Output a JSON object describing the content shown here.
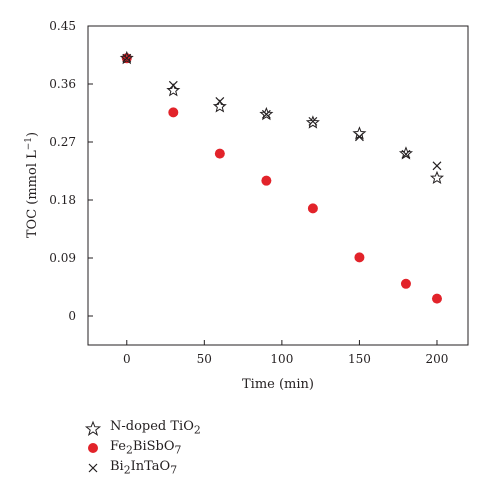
{
  "chart_data": {
    "type": "scatter",
    "title": "",
    "xlabel": "Time (min)",
    "ylabel_parts": [
      "TOC (mmol L",
      "−1",
      ")"
    ],
    "xlim": [
      -25,
      220
    ],
    "ylim": [
      -0.045,
      0.45
    ],
    "x_ticks": [
      0,
      50,
      100,
      150,
      200
    ],
    "y_ticks": [
      0,
      0.09,
      0.18,
      0.27,
      0.36,
      0.45
    ],
    "y_tick_labels": [
      "0",
      "0.09",
      "0.18",
      "0.27",
      "0.36",
      "0.45"
    ],
    "grid": false,
    "legend_placement": "bottom-left outside",
    "series": [
      {
        "name_parts": [
          "N-doped TiO",
          "2",
          ""
        ],
        "marker": "star-open",
        "color": "#231f20",
        "x": [
          0,
          30,
          60,
          90,
          120,
          150,
          180,
          200
        ],
        "y": [
          0.4,
          0.35,
          0.325,
          0.313,
          0.3,
          0.283,
          0.252,
          0.214
        ]
      },
      {
        "name_parts": [
          "Fe",
          "2",
          "BiSbO",
          "7",
          ""
        ],
        "marker": "circle-filled",
        "color": "#e2232a",
        "x": [
          0,
          30,
          60,
          90,
          120,
          150,
          180,
          200
        ],
        "y": [
          0.4,
          0.316,
          0.252,
          0.21,
          0.167,
          0.091,
          0.05,
          0.027
        ]
      },
      {
        "name_parts": [
          "Bi",
          "2",
          "InTaO",
          "7",
          ""
        ],
        "marker": "x",
        "color": "#231f20",
        "x": [
          0,
          30,
          60,
          90,
          120,
          150,
          180,
          200
        ],
        "y": [
          0.4,
          0.358,
          0.333,
          0.313,
          0.302,
          0.278,
          0.251,
          0.233
        ]
      }
    ]
  }
}
